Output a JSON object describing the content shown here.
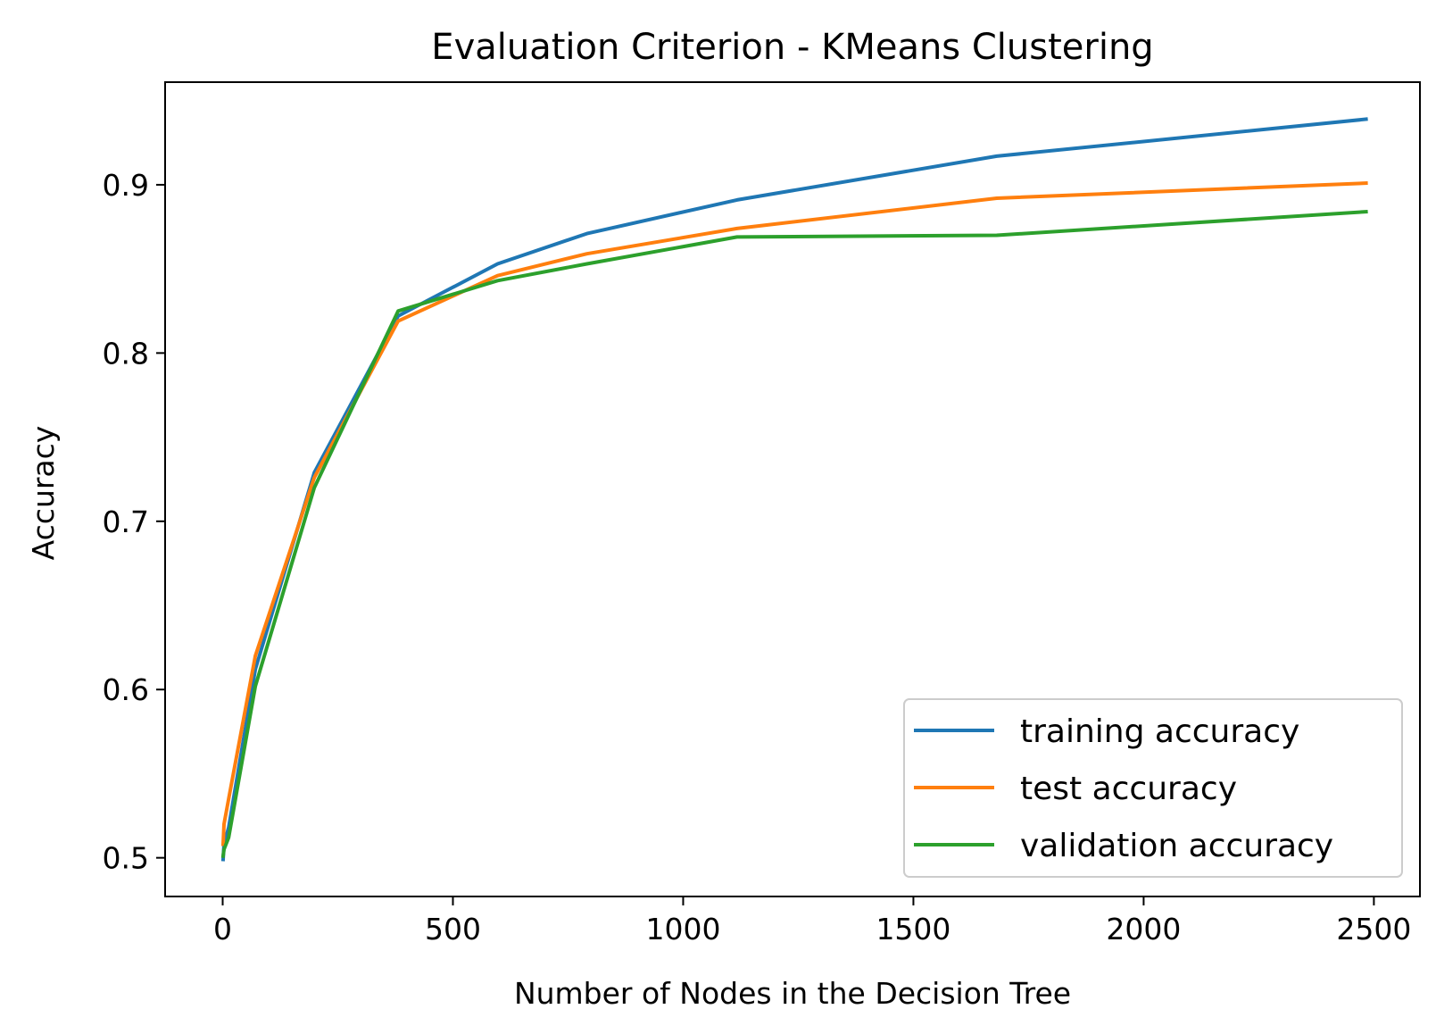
{
  "chart_data": {
    "type": "line",
    "title": "Evaluation Criterion - KMeans Clustering",
    "xlabel": "Number of Nodes in the Decision Tree",
    "ylabel": "Accuracy",
    "xlim": [
      -125,
      2600
    ],
    "ylim": [
      0.477,
      0.961
    ],
    "xticks": [
      0,
      500,
      1000,
      1500,
      2000,
      2500
    ],
    "xtick_labels": [
      "0",
      "500",
      "1000",
      "1500",
      "2000",
      "2500"
    ],
    "yticks": [
      0.5,
      0.6,
      0.7,
      0.8,
      0.9
    ],
    "ytick_labels": [
      "0.5",
      "0.6",
      "0.7",
      "0.8",
      "0.9"
    ],
    "grid": false,
    "legend_position": "lower-right",
    "series": [
      {
        "name": "training accuracy",
        "color": "#1f77b4",
        "x": [
          1,
          3,
          13,
          71,
          199,
          381,
          597,
          791,
          1117,
          1681,
          2483
        ],
        "y": [
          0.499,
          0.508,
          0.518,
          0.612,
          0.729,
          0.822,
          0.853,
          0.871,
          0.891,
          0.917,
          0.939
        ]
      },
      {
        "name": "test accuracy",
        "color": "#ff7f0e",
        "x": [
          1,
          3,
          13,
          71,
          199,
          381,
          597,
          791,
          1117,
          1681,
          2483
        ],
        "y": [
          0.508,
          0.52,
          0.535,
          0.62,
          0.726,
          0.819,
          0.846,
          0.859,
          0.874,
          0.892,
          0.901
        ]
      },
      {
        "name": "validation accuracy",
        "color": "#2ca02c",
        "x": [
          1,
          3,
          13,
          71,
          199,
          381,
          597,
          791,
          1117,
          1681,
          2483
        ],
        "y": [
          0.501,
          0.505,
          0.512,
          0.602,
          0.72,
          0.825,
          0.843,
          0.853,
          0.869,
          0.87,
          0.884
        ]
      }
    ]
  }
}
